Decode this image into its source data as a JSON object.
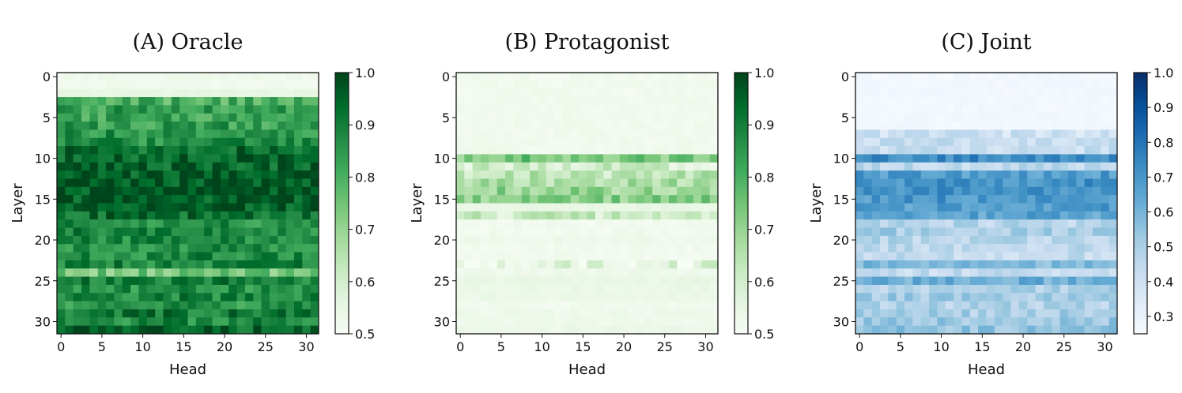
{
  "chart_data": [
    {
      "type": "heatmap",
      "title": "(A) Oracle",
      "xlabel": "Head",
      "ylabel": "Layer",
      "x_ticks": [
        "0",
        "5",
        "10",
        "15",
        "20",
        "25",
        "30"
      ],
      "y_ticks": [
        "0",
        "5",
        "10",
        "15",
        "20",
        "25",
        "30"
      ],
      "colorbar_ticks": [
        "0.5",
        "0.6",
        "0.7",
        "0.8",
        "0.9",
        "1.0"
      ],
      "vmin": 0.5,
      "vmax": 1.0,
      "colormap": "Greens",
      "n_layers": 32,
      "n_heads": 32,
      "layer_mean_values": [
        0.53,
        0.52,
        0.55,
        0.8,
        0.84,
        0.82,
        0.84,
        0.86,
        0.87,
        0.93,
        0.95,
        0.95,
        0.96,
        0.97,
        0.98,
        0.97,
        0.96,
        0.93,
        0.87,
        0.89,
        0.88,
        0.86,
        0.88,
        0.89,
        0.74,
        0.9,
        0.87,
        0.89,
        0.86,
        0.91,
        0.88,
        0.94
      ]
    },
    {
      "type": "heatmap",
      "title": "(B) Protagonist",
      "xlabel": "Head",
      "ylabel": "Layer",
      "x_ticks": [
        "0",
        "5",
        "10",
        "15",
        "20",
        "25",
        "30"
      ],
      "y_ticks": [
        "0",
        "5",
        "10",
        "15",
        "20",
        "25",
        "30"
      ],
      "colorbar_ticks": [
        "0.5",
        "0.6",
        "0.7",
        "0.8",
        "0.9",
        "1.0"
      ],
      "vmin": 0.5,
      "vmax": 1.0,
      "colormap": "Greens",
      "n_layers": 32,
      "n_heads": 32,
      "layer_mean_values": [
        0.52,
        0.52,
        0.52,
        0.52,
        0.52,
        0.52,
        0.52,
        0.52,
        0.52,
        0.52,
        0.74,
        0.6,
        0.64,
        0.67,
        0.7,
        0.72,
        0.55,
        0.61,
        0.52,
        0.52,
        0.53,
        0.52,
        0.52,
        0.56,
        0.53,
        0.55,
        0.54,
        0.54,
        0.52,
        0.53,
        0.53,
        0.54
      ]
    },
    {
      "type": "heatmap",
      "title": "(C) Joint",
      "xlabel": "Head",
      "ylabel": "Layer",
      "x_ticks": [
        "0",
        "5",
        "10",
        "15",
        "20",
        "25",
        "30"
      ],
      "y_ticks": [
        "0",
        "5",
        "10",
        "15",
        "20",
        "25",
        "30"
      ],
      "colorbar_ticks": [
        "0.3",
        "0.4",
        "0.5",
        "0.6",
        "0.7",
        "0.8",
        "0.9",
        "1.0"
      ],
      "vmin": 0.25,
      "vmax": 1.0,
      "colormap": "Blues",
      "n_layers": 32,
      "n_heads": 32,
      "layer_mean_values": [
        0.27,
        0.27,
        0.27,
        0.27,
        0.27,
        0.27,
        0.27,
        0.4,
        0.42,
        0.42,
        0.74,
        0.45,
        0.68,
        0.72,
        0.72,
        0.7,
        0.68,
        0.66,
        0.47,
        0.51,
        0.47,
        0.45,
        0.44,
        0.58,
        0.43,
        0.62,
        0.49,
        0.52,
        0.48,
        0.5,
        0.53,
        0.55
      ]
    }
  ]
}
